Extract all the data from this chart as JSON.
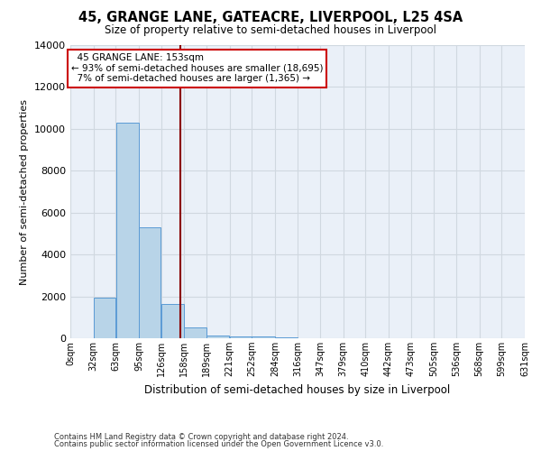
{
  "title": "45, GRANGE LANE, GATEACRE, LIVERPOOL, L25 4SA",
  "subtitle": "Size of property relative to semi-detached houses in Liverpool",
  "xlabel": "Distribution of semi-detached houses by size in Liverpool",
  "ylabel": "Number of semi-detached properties",
  "footer_line1": "Contains HM Land Registry data © Crown copyright and database right 2024.",
  "footer_line2": "Contains public sector information licensed under the Open Government Licence v3.0.",
  "annotation_title": "45 GRANGE LANE: 153sqm",
  "annotation_line1": "← 93% of semi-detached houses are smaller (18,695)",
  "annotation_line2": "7% of semi-detached houses are larger (1,365) →",
  "property_size": 153,
  "bar_edges": [
    0,
    32,
    63,
    95,
    126,
    158,
    189,
    221,
    252,
    284,
    316,
    347,
    379,
    410,
    442,
    473,
    505,
    536,
    568,
    599,
    631
  ],
  "bar_heights": [
    0,
    1950,
    10300,
    5300,
    1650,
    500,
    150,
    100,
    80,
    50,
    0,
    0,
    0,
    0,
    0,
    0,
    0,
    0,
    0,
    0
  ],
  "tick_labels": [
    "0sqm",
    "32sqm",
    "63sqm",
    "95sqm",
    "126sqm",
    "158sqm",
    "189sqm",
    "221sqm",
    "252sqm",
    "284sqm",
    "316sqm",
    "347sqm",
    "379sqm",
    "410sqm",
    "442sqm",
    "473sqm",
    "505sqm",
    "536sqm",
    "568sqm",
    "599sqm",
    "631sqm"
  ],
  "bar_color": "#b8d4e8",
  "bar_edge_color": "#5b9bd5",
  "vline_color": "#8b0000",
  "vline_x": 153,
  "grid_color": "#d0d8e0",
  "annotation_box_color": "#ffffff",
  "annotation_box_edge": "#cc0000",
  "ylim": [
    0,
    14000
  ],
  "yticks": [
    0,
    2000,
    4000,
    6000,
    8000,
    10000,
    12000,
    14000
  ],
  "bg_color": "#eaf0f8"
}
